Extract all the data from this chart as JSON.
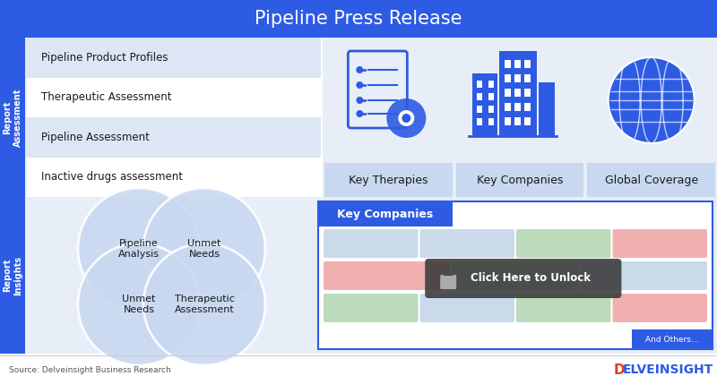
{
  "title": "Pipeline Press Release",
  "title_color": "#ffffff",
  "header_bg_color": "#2d5be3",
  "main_bg": "#ffffff",
  "blue_accent": "#2d5be3",
  "light_blue_bg": "#e8eef8",
  "light_blue_venn": "#c8d8f0",
  "sidebar_bg": "#2d5be3",
  "report_assessment_label": "Report\nAssessment",
  "report_insights_label": "Report\nInsights",
  "assessment_items": [
    "Pipeline Product Profiles",
    "Therapeutic Assessment",
    "Pipeline Assessment",
    "Inactive drugs assessment"
  ],
  "assessment_highlight_rows": [
    0,
    2
  ],
  "assessment_highlight_color": "#dce6f5",
  "icon_labels": [
    "Key Therapies",
    "Key Companies",
    "Global Coverage"
  ],
  "icon_label_bg": "#c8d8f0",
  "key_companies_box_title": "Key Companies",
  "key_companies_box_title_bg": "#2d5be3",
  "key_companies_box_title_color": "#ffffff",
  "lock_text": "Click Here to Unlock",
  "and_others_text": "And Others...",
  "and_others_bg": "#2d5be3",
  "source_text": "Source: Delveinsight Business Research",
  "logo_d_color": "#e04020",
  "logo_rest_color": "#2d5be3",
  "row_data": [
    [
      "#8baed4",
      "#8baed4",
      "#6ab06a",
      "#e05050"
    ],
    [
      "#e05050",
      "#6ab06a",
      "#8baed4"
    ],
    [
      "#6ab06a",
      "#8baed4",
      "#6ab06a",
      "#e05050"
    ],
    [
      "#8baed4",
      "#e05050",
      "#6ab06a"
    ]
  ]
}
